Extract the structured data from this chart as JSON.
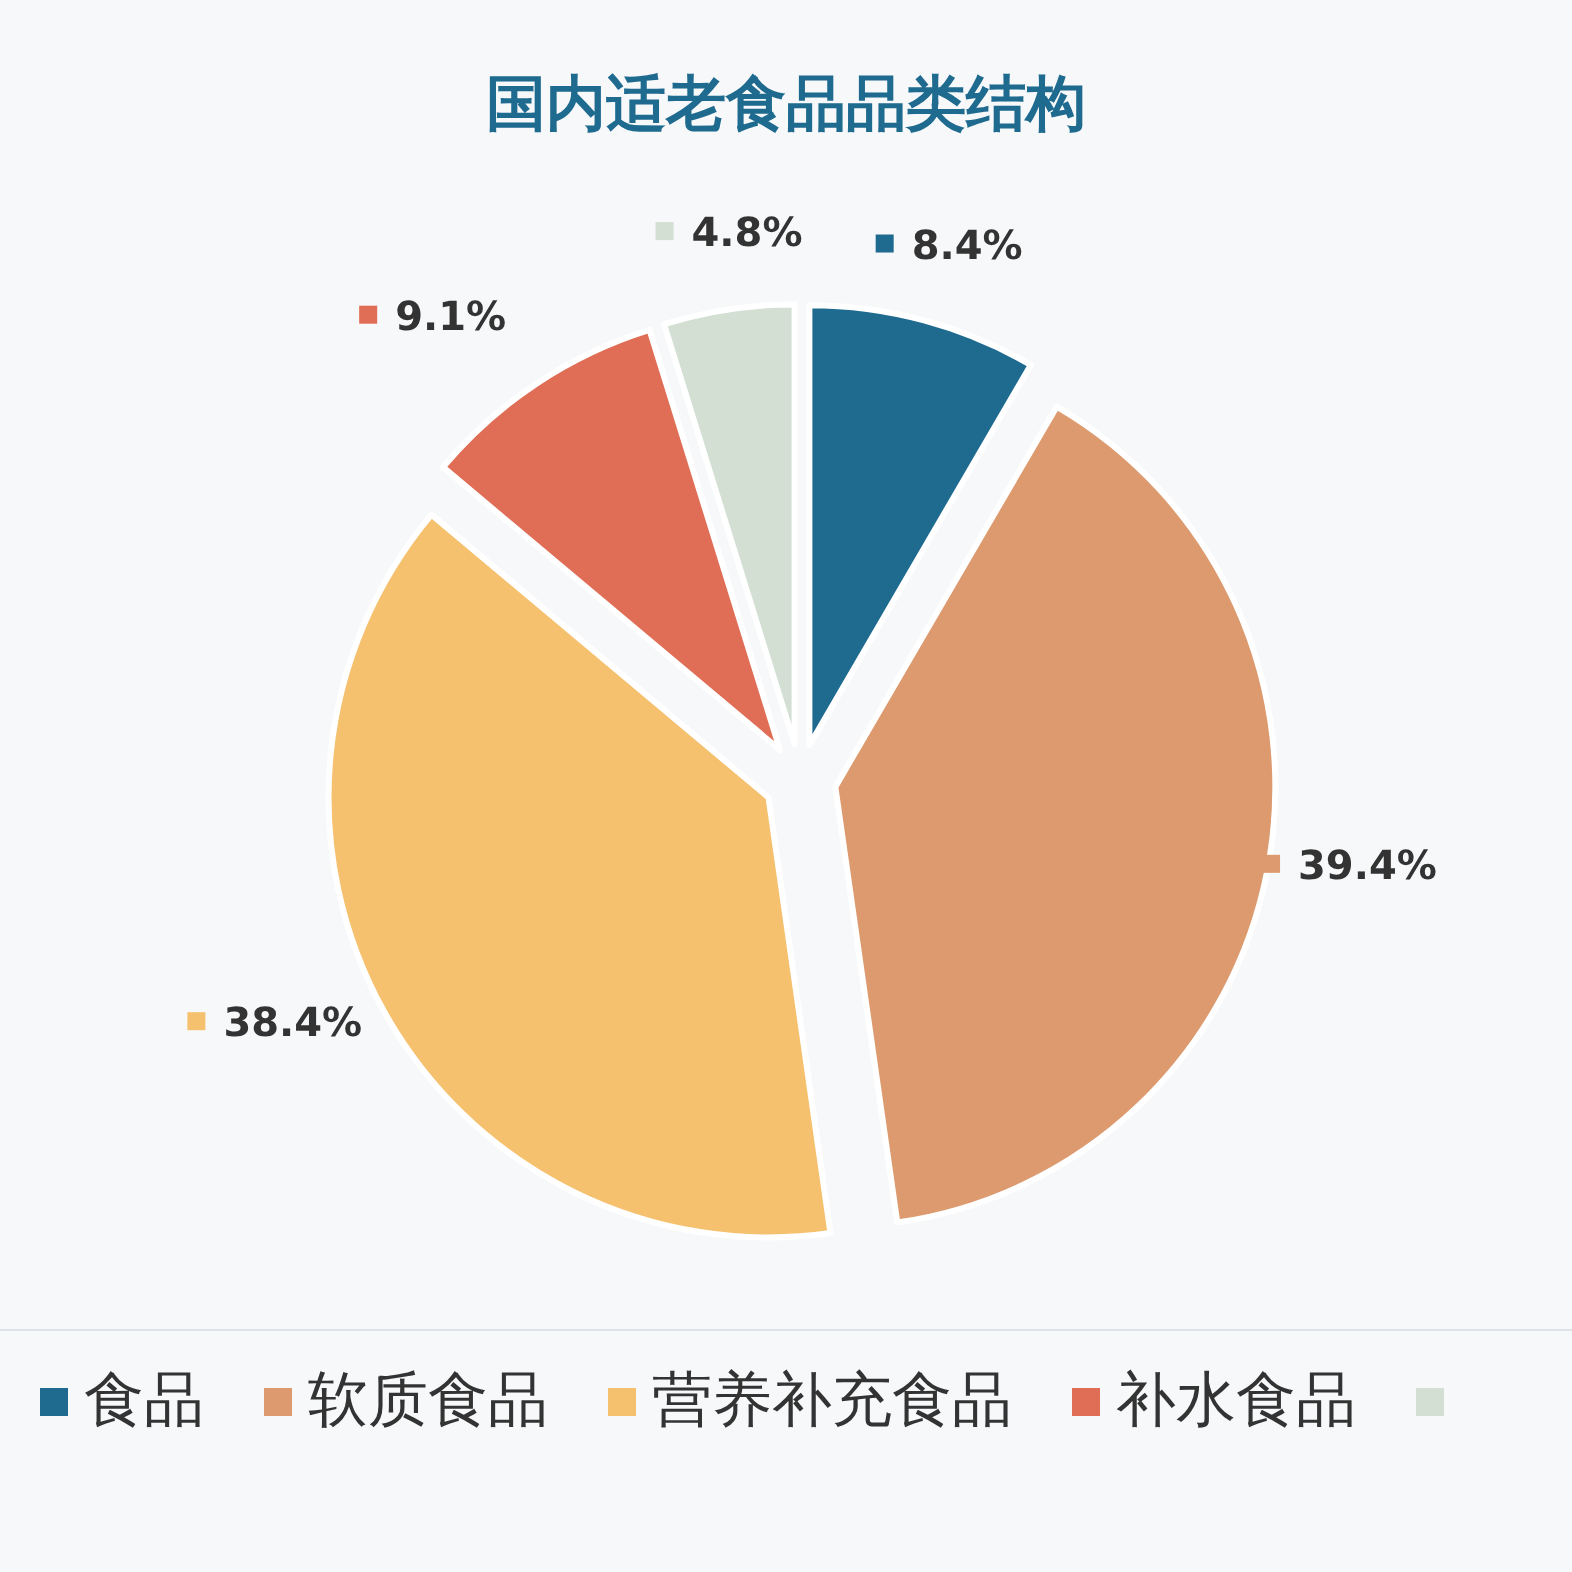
{
  "chart_data": {
    "type": "pie",
    "title": "国内适老食品品类结构",
    "categories": [
      "食品",
      "软质食品",
      "营养补充食品",
      "补水食品",
      null
    ],
    "values": [
      8.4,
      39.4,
      38.4,
      9.1,
      4.8
    ],
    "colors": [
      "#1f6a8f",
      "#dc9a6e",
      "#f6c16e",
      "#e06d55",
      "#d3dfd3"
    ],
    "value_labels": [
      "8.4%",
      "39.4%",
      "38.4%",
      "9.1%",
      "4.8%"
    ],
    "legend": "bottom"
  }
}
